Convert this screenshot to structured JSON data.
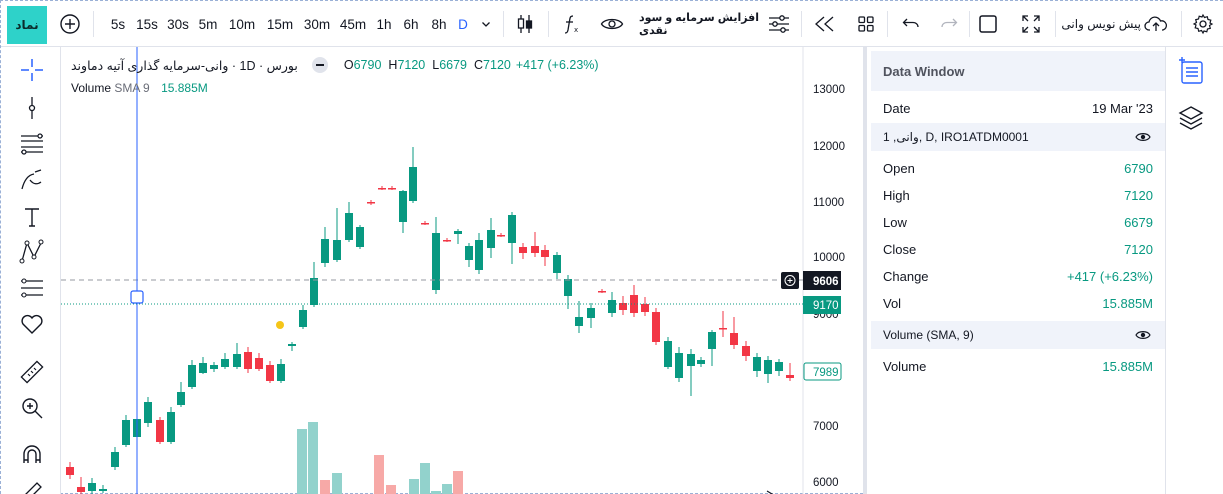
{
  "toolbar": {
    "symbol_label": "نماد",
    "intervals": [
      "5s",
      "15s",
      "30s",
      "5m",
      "10m",
      "15m",
      "30m",
      "45m",
      "1h",
      "6h",
      "8h",
      "D"
    ],
    "active_interval": "D",
    "indicator_label": "افزایش سرمایه و سود نقدی",
    "publish_label": "پیش نویس وانی"
  },
  "legend": {
    "title": "بورس · 1D · وانی-سرمایه گذاری آتیه دماوند",
    "open_key": "O",
    "open": "6790",
    "high_key": "H",
    "high": "7120",
    "low_key": "L",
    "low": "6679",
    "close_key": "C",
    "close": "7120",
    "change": "+417 (+6.23%)",
    "volume_label": "Volume",
    "volume_sma": "SMA 9",
    "volume_value": "15.885M"
  },
  "chart_data": {
    "type": "candlestick",
    "y_axis_ticks": [
      "13000",
      "12000",
      "11000",
      "10000",
      "9000",
      "7000",
      "6000"
    ],
    "crosshair_price": "9606",
    "price_label": "9170",
    "last_price_label": "7989",
    "colors": {
      "up": "#089981",
      "down": "#f23645",
      "volume_up": "#92d2cc",
      "volume_down": "#f7a9a7"
    }
  },
  "data_window": {
    "title": "Data Window",
    "date_label": "Date",
    "date_value": "19 Mar '23",
    "series_title": "1 ,وانی, D, IRO1ATDM0001",
    "rows": [
      {
        "label": "Open",
        "value": "6790"
      },
      {
        "label": "High",
        "value": "7120"
      },
      {
        "label": "Low",
        "value": "6679"
      },
      {
        "label": "Close",
        "value": "7120"
      },
      {
        "label": "Change",
        "value": "+417 (+6.23%)"
      },
      {
        "label": "Vol",
        "value": "15.885M"
      }
    ],
    "volume_title": "Volume (SMA, 9)",
    "volume_row": {
      "label": "Volume",
      "value": "15.885M"
    }
  }
}
